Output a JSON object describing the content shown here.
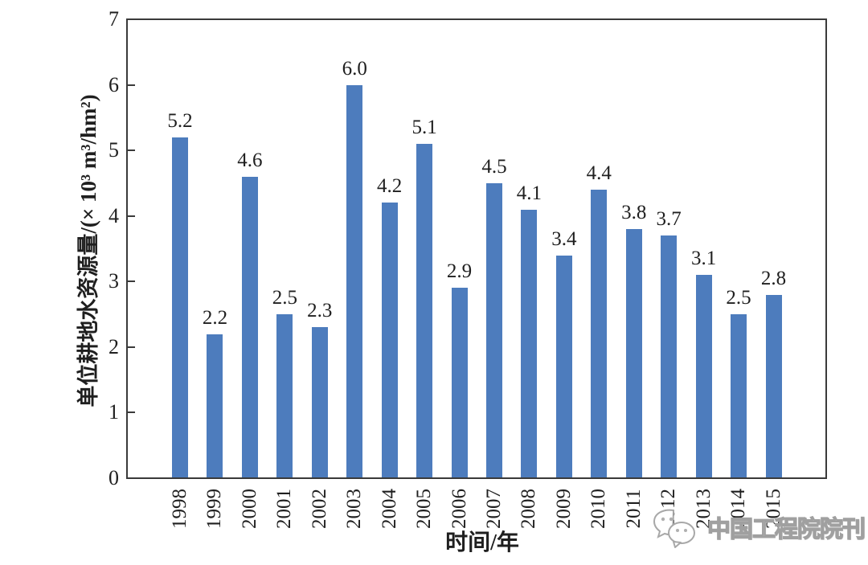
{
  "chart_data": {
    "type": "bar",
    "title": "",
    "xlabel": "时间/年",
    "ylabel": "单位耕地水资源量/(× 10³ m³/hm²)",
    "categories": [
      "1998",
      "1999",
      "2000",
      "2001",
      "2002",
      "2003",
      "2004",
      "2005",
      "2006",
      "2007",
      "2008",
      "2009",
      "2010",
      "2011",
      "2012",
      "2013",
      "2014",
      "2015"
    ],
    "values": [
      5.2,
      2.2,
      4.6,
      2.5,
      2.3,
      6.0,
      4.2,
      5.1,
      2.9,
      4.5,
      4.1,
      3.4,
      4.4,
      3.8,
      3.7,
      3.1,
      2.5,
      2.8
    ],
    "value_labels": [
      "5.2",
      "2.2",
      "4.6",
      "2.5",
      "2.3",
      "6.0",
      "4.2",
      "5.1",
      "2.9",
      "4.5",
      "4.1",
      "3.4",
      "4.4",
      "3.8",
      "3.7",
      "3.1",
      "2.5",
      "2.8"
    ],
    "ylim": [
      0,
      7
    ],
    "yticks": [
      0,
      1,
      2,
      3,
      4,
      5,
      6,
      7
    ],
    "grid": false,
    "legend_position": "none",
    "bar_color": "#4d7cbd",
    "axis_color": "#3a3a3a",
    "text_color": "#1f1f1f"
  },
  "watermark": {
    "text": "中国工程院院刊",
    "logo_icon": "chat-bubbles-icon",
    "outline_color": "#a0a0a0"
  }
}
